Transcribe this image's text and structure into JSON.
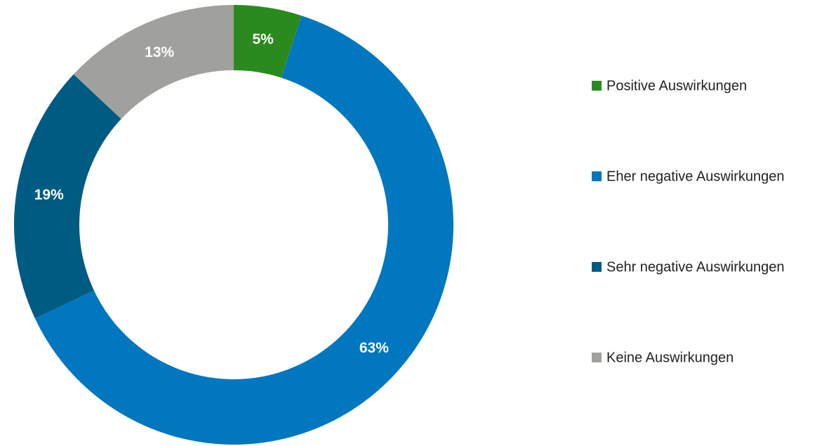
{
  "chart_data": {
    "type": "donut",
    "categories": [
      "Positive Auswirkungen",
      "Eher negative Auswirkungen",
      "Sehr negative Auswirkungen",
      "Keine Auswirkungen"
    ],
    "values": [
      5,
      63,
      19,
      13
    ],
    "value_labels": [
      "5%",
      "63%",
      "19%",
      "13%"
    ],
    "colors": [
      "#2b8a1e",
      "#0077be",
      "#005b82",
      "#a0a09c"
    ],
    "legend": "right"
  }
}
